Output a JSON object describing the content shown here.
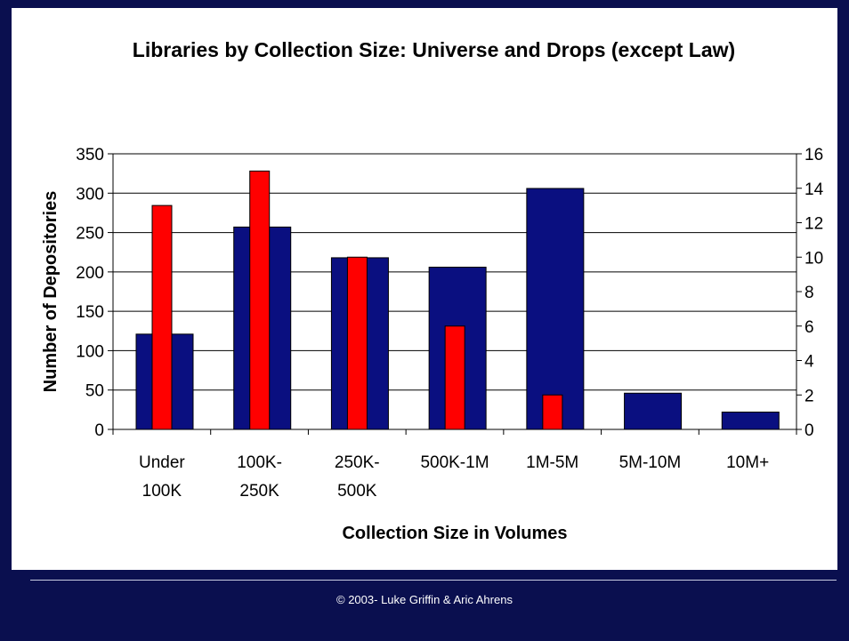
{
  "footer": {
    "copyright": "© 2003- Luke Griffin & Aric Ahrens"
  },
  "colors": {
    "background": "#0a0f4f",
    "series_universe": "#0a0f80",
    "series_drops": "#ff0000"
  },
  "chart_data": {
    "type": "bar",
    "title": "Libraries by Collection Size: Universe and Drops (except Law)",
    "xlabel": "Collection Size in Volumes",
    "ylabel": "Number of Depositories",
    "categories": [
      [
        "Under",
        "100K"
      ],
      [
        "100K-",
        "250K"
      ],
      [
        "250K-",
        "500K"
      ],
      [
        "500K-1M"
      ],
      [
        "1M-5M"
      ],
      [
        "5M-10M"
      ],
      [
        "10M+"
      ]
    ],
    "ylim": [
      0,
      350
    ],
    "y_ticks": [
      "0",
      "50",
      "100",
      "150",
      "200",
      "250",
      "300",
      "350"
    ],
    "y2lim": [
      0,
      16
    ],
    "y2_ticks": [
      "0",
      "2",
      "4",
      "6",
      "8",
      "10",
      "12",
      "14",
      "16"
    ],
    "grid": true,
    "legend": "none",
    "series": [
      {
        "axis": "left",
        "color": "#0a0f80",
        "values": [
          121,
          257,
          218,
          206,
          306,
          46,
          22
        ]
      },
      {
        "axis": "right",
        "color": "#ff0000",
        "values": [
          13,
          15,
          10,
          6,
          2,
          0,
          0
        ]
      }
    ]
  }
}
